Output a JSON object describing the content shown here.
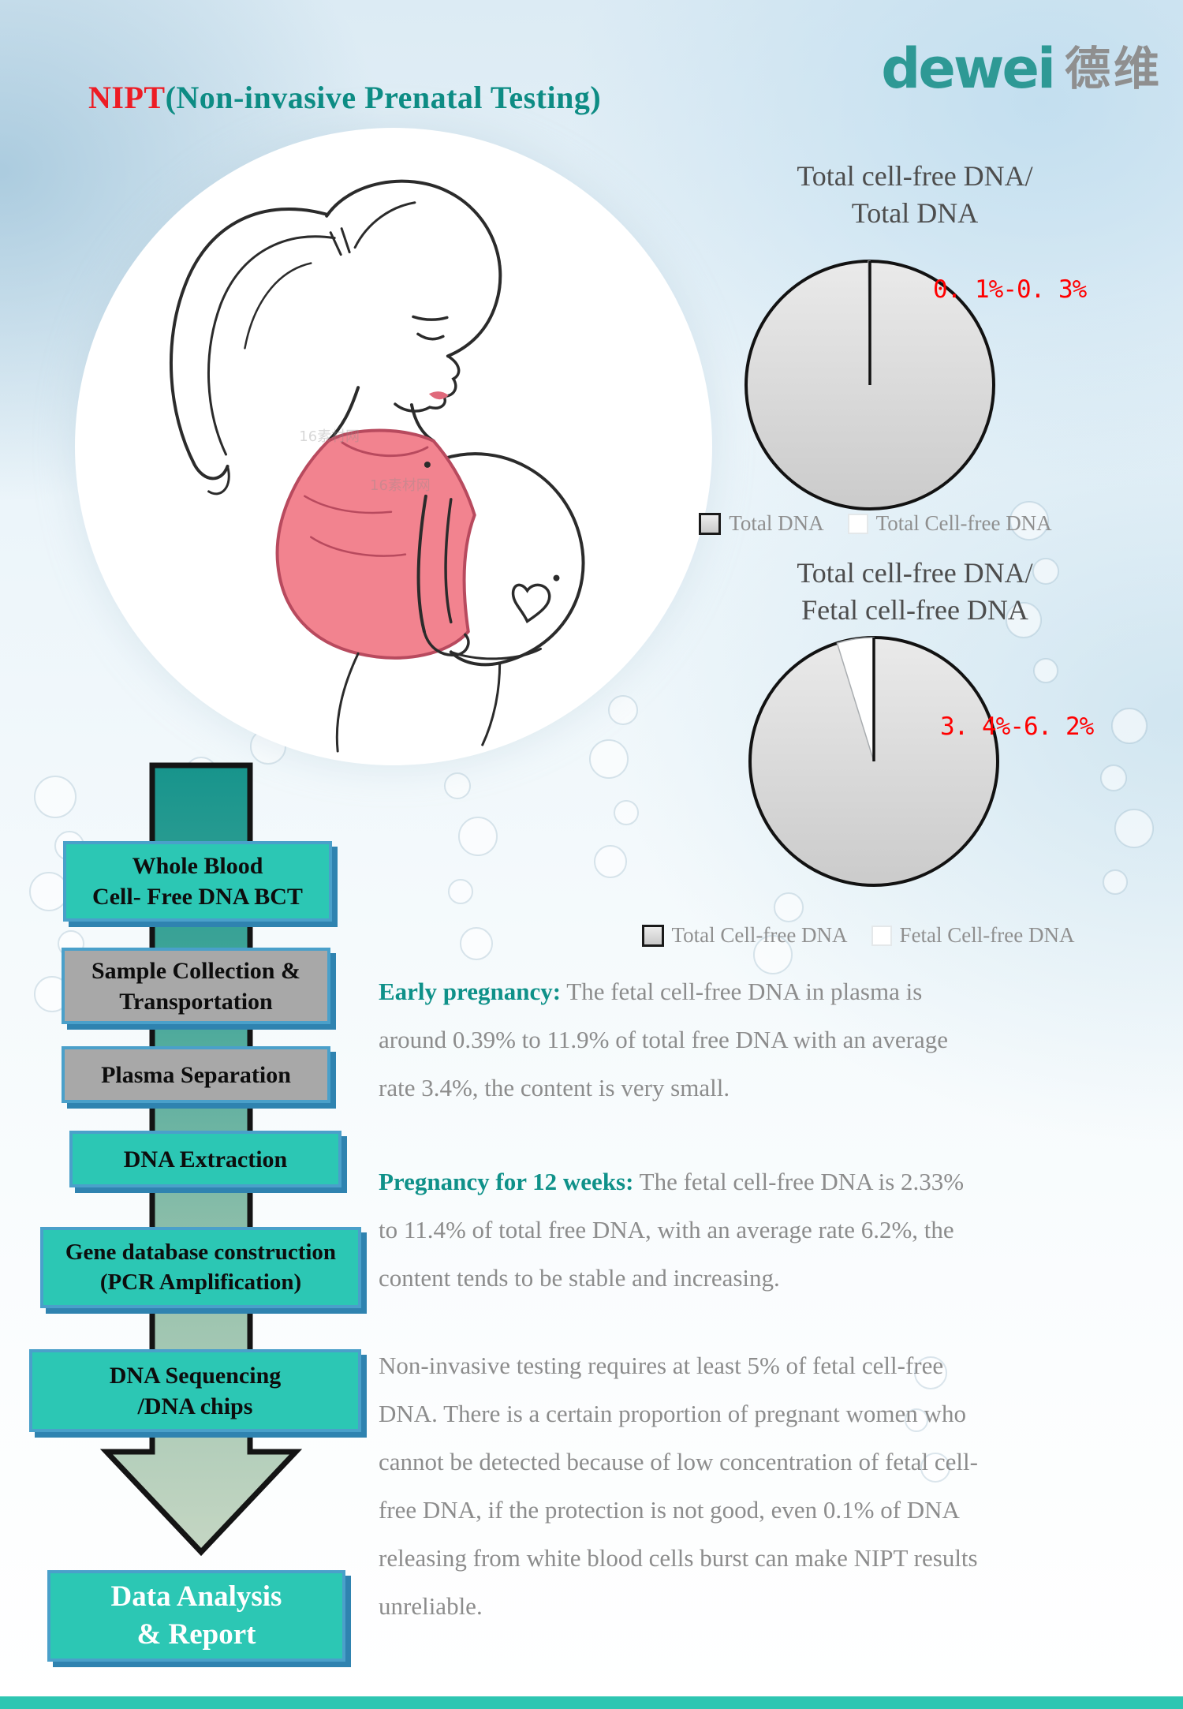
{
  "page": {
    "title": {
      "red": "NIPT",
      "teal": "(Non-invasive Prenatal Testing)"
    },
    "logo": {
      "latin": "dewei",
      "chinese": "德维"
    },
    "watermark": "16素材网"
  },
  "chart_data": [
    {
      "type": "pie",
      "title": "Total cell-free DNA/\nTotal DNA",
      "slices": [
        {
          "label": "Total DNA",
          "value": 99.8,
          "color": "#d9d9d9"
        },
        {
          "label": "Total Cell-free DNA",
          "value": 0.2,
          "color": "#ffffff"
        }
      ],
      "annotation": {
        "text": "0. 1%-0. 3%",
        "color": "#ff0000"
      },
      "legend": [
        {
          "label": "Total DNA",
          "swatch": "#d9d9d9"
        },
        {
          "label": "Total Cell-free DNA",
          "swatch": "#ffffff"
        }
      ],
      "legend_position": "bottom"
    },
    {
      "type": "pie",
      "title": "Total cell-free DNA/\nFetal cell-free DNA",
      "slices": [
        {
          "label": "Total Cell-free DNA",
          "value": 95.2,
          "color": "#d9d9d9"
        },
        {
          "label": "Fetal Cell-free DNA",
          "value": 4.8,
          "color": "#ffffff"
        }
      ],
      "annotation": {
        "text": "3. 4%-6. 2%",
        "color": "#ff0000"
      },
      "legend": [
        {
          "label": "Total Cell-free DNA",
          "swatch": "#d9d9d9"
        },
        {
          "label": "Fetal Cell-free DNA",
          "swatch": "#ffffff"
        }
      ],
      "legend_position": "bottom"
    }
  ],
  "flow": {
    "steps": [
      {
        "label": "Whole Blood\nCell- Free DNA BCT",
        "variant": "teal"
      },
      {
        "label": "Sample Collection &\nTransportation",
        "variant": "gray"
      },
      {
        "label": "Plasma Separation",
        "variant": "gray"
      },
      {
        "label": "DNA Extraction",
        "variant": "teal"
      },
      {
        "label": "Gene database construction\n(PCR Amplification)",
        "variant": "teal"
      },
      {
        "label": "DNA Sequencing\n/DNA chips",
        "variant": "teal"
      },
      {
        "label": "Data Analysis\n& Report",
        "variant": "teal-final"
      }
    ]
  },
  "paragraphs": [
    {
      "lead": "Early pregnancy:",
      "text": " The fetal cell-free DNA in plasma is\naround 0.39% to 11.9% of total free DNA with an  average\nrate 3.4%, the content is very small."
    },
    {
      "lead": "Pregnancy for 12 weeks:",
      "text": " The fetal  cell-free DNA is 2.33%\nto 11.4% of total free DNA, with an average rate 6.2%, the\ncontent tends to be stable and increasing."
    },
    {
      "lead": "",
      "text": "Non-invasive testing requires at least 5% of fetal cell-free\nDNA. There is a certain proportion of pregnant women who\ncannot be detected because of low concentration of fetal cell-\nfree  DNA, if the protection is not good, even 0.1% of DNA\nreleasing from white blood cells burst can make NIPT results\nunreliable."
    }
  ],
  "colors": {
    "accent_teal": "#0d8c84",
    "title_red": "#ed1c24",
    "box_teal": "#2cc7b4",
    "box_gray": "#a8a8a8",
    "box_border": "#4aa0ca",
    "body_gray": "#8c8c8c",
    "pie_gray": "#d9d9d9",
    "annotation_red": "#ff0000"
  }
}
